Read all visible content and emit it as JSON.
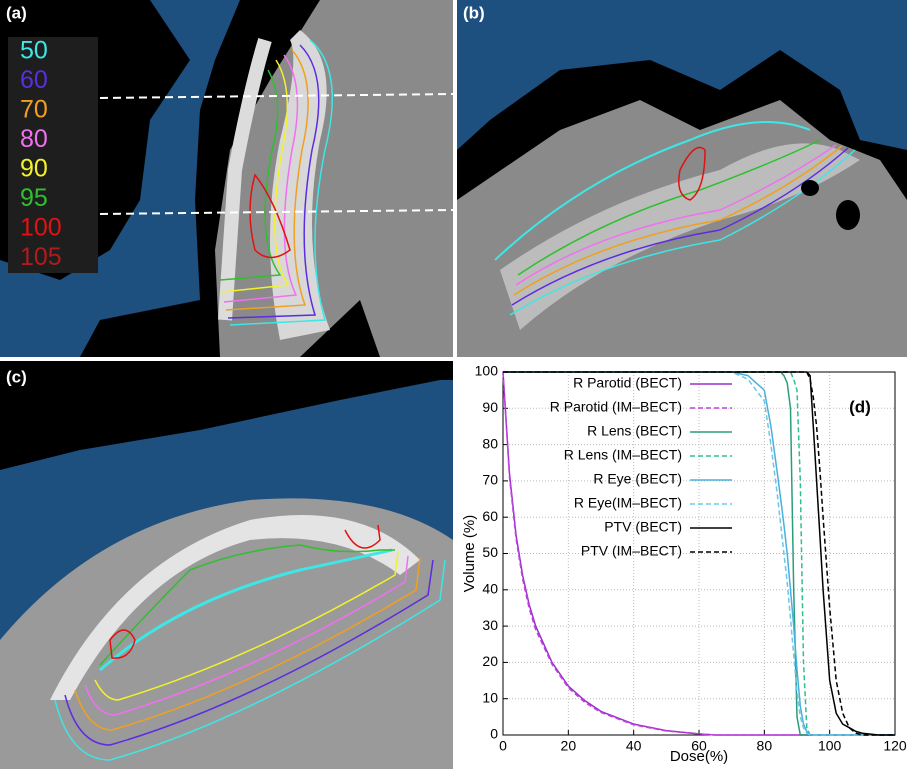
{
  "panels": [
    "(a)",
    "(b)",
    "(c)"
  ],
  "isodose_legend": [
    {
      "label": "50",
      "color": "#3ee6e6"
    },
    {
      "label": "60",
      "color": "#5a2ee0"
    },
    {
      "label": "70",
      "color": "#f0a020"
    },
    {
      "label": "80",
      "color": "#f070f0"
    },
    {
      "label": "90",
      "color": "#f2f22a"
    },
    {
      "label": "95",
      "color": "#2fbf2f"
    },
    {
      "label": "100",
      "color": "#e01212"
    },
    {
      "label": "105",
      "color": "#b01c1c"
    }
  ],
  "chart_data": {
    "type": "line",
    "annotation": "(d)",
    "x_label": "Dose(%)",
    "y_label": "Volume (%)",
    "x": [
      0,
      2,
      4,
      6,
      8,
      10,
      15,
      20,
      25,
      30,
      40,
      50,
      60,
      65,
      70,
      75,
      80,
      82,
      84,
      85,
      86,
      87,
      88,
      89,
      90,
      91,
      92,
      93,
      94,
      95,
      96,
      97,
      98,
      100,
      102,
      104,
      106,
      108,
      110,
      115,
      120
    ],
    "series": [
      {
        "name": "R Parotid (BECT)",
        "color": "#9b30c8",
        "dash": false,
        "values": [
          100,
          72,
          55,
          44,
          36,
          30,
          20,
          13.5,
          9.5,
          6.5,
          3,
          1.2,
          0.3,
          0,
          0,
          0,
          0,
          0,
          0,
          0,
          0,
          0,
          0,
          0,
          0,
          0,
          0,
          0,
          0,
          0,
          0,
          0,
          0,
          0,
          0,
          0,
          0,
          0,
          0,
          0,
          0
        ]
      },
      {
        "name": "R Parotid (IM–BECT)",
        "color": "#c040e0",
        "dash": true,
        "values": [
          100,
          71,
          54,
          43,
          35,
          29,
          19.5,
          13,
          9,
          6.2,
          2.8,
          1.1,
          0.3,
          0,
          0,
          0,
          0,
          0,
          0,
          0,
          0,
          0,
          0,
          0,
          0,
          0,
          0,
          0,
          0,
          0,
          0,
          0,
          0,
          0,
          0,
          0,
          0,
          0,
          0,
          0,
          0
        ]
      },
      {
        "name": "R Lens (BECT)",
        "color": "#2a9d7a",
        "dash": false,
        "values": [
          100,
          100,
          100,
          100,
          100,
          100,
          100,
          100,
          100,
          100,
          100,
          100,
          100,
          100,
          100,
          100,
          100,
          100,
          100,
          100,
          99,
          97,
          90,
          40,
          5,
          0,
          0,
          0,
          0,
          0,
          0,
          0,
          0,
          0,
          0,
          0,
          0,
          0,
          0,
          0,
          0
        ]
      },
      {
        "name": "R Lens (IM–BECT)",
        "color": "#2fbf8f",
        "dash": true,
        "values": [
          100,
          100,
          100,
          100,
          100,
          100,
          100,
          100,
          100,
          100,
          100,
          100,
          100,
          100,
          100,
          100,
          100,
          100,
          100,
          100,
          100,
          100,
          100,
          98,
          95,
          70,
          20,
          2,
          0,
          0,
          0,
          0,
          0,
          0,
          0,
          0,
          0,
          0,
          0,
          0,
          0
        ]
      },
      {
        "name": "R Eye (BECT)",
        "color": "#4ab0dc",
        "dash": false,
        "values": [
          100,
          100,
          100,
          100,
          100,
          100,
          100,
          100,
          100,
          100,
          100,
          100,
          100,
          100,
          100,
          99,
          95,
          85,
          72,
          65,
          58,
          50,
          40,
          30,
          18,
          8,
          3,
          1,
          0,
          0,
          0,
          0,
          0,
          0,
          0,
          0,
          0,
          0,
          0,
          0,
          0
        ]
      },
      {
        "name": "R Eye(IM–BECT)",
        "color": "#6cc6ea",
        "dash": true,
        "values": [
          100,
          100,
          100,
          100,
          100,
          100,
          100,
          100,
          100,
          100,
          100,
          100,
          100,
          100,
          100,
          98,
          92,
          80,
          66,
          58,
          50,
          42,
          32,
          22,
          12,
          5,
          2,
          0.5,
          0,
          0,
          0,
          0,
          0,
          0,
          0,
          0,
          0,
          0,
          0,
          0,
          0
        ]
      },
      {
        "name": "PTV (BECT)",
        "color": "#000000",
        "dash": false,
        "values": [
          100,
          100,
          100,
          100,
          100,
          100,
          100,
          100,
          100,
          100,
          100,
          100,
          100,
          100,
          100,
          100,
          100,
          100,
          100,
          100,
          100,
          100,
          100,
          100,
          100,
          100,
          100,
          100,
          99,
          85,
          70,
          55,
          40,
          15,
          6,
          3,
          2,
          1,
          0.5,
          0,
          0
        ]
      },
      {
        "name": "PTV (IM–BECT)",
        "color": "#000000",
        "dash": true,
        "values": [
          100,
          100,
          100,
          100,
          100,
          100,
          100,
          100,
          100,
          100,
          100,
          100,
          100,
          100,
          100,
          100,
          100,
          100,
          100,
          100,
          100,
          100,
          100,
          100,
          100,
          100,
          100,
          100,
          98,
          93,
          85,
          73,
          60,
          35,
          15,
          6,
          2,
          0.5,
          0,
          0,
          0
        ]
      }
    ],
    "xlim": [
      0,
      120
    ],
    "ylim": [
      0,
      100
    ],
    "xticks": [
      0,
      20,
      40,
      60,
      80,
      100,
      120
    ],
    "yticks": [
      0,
      10,
      20,
      30,
      40,
      50,
      60,
      70,
      80,
      90,
      100
    ],
    "grid": true
  }
}
